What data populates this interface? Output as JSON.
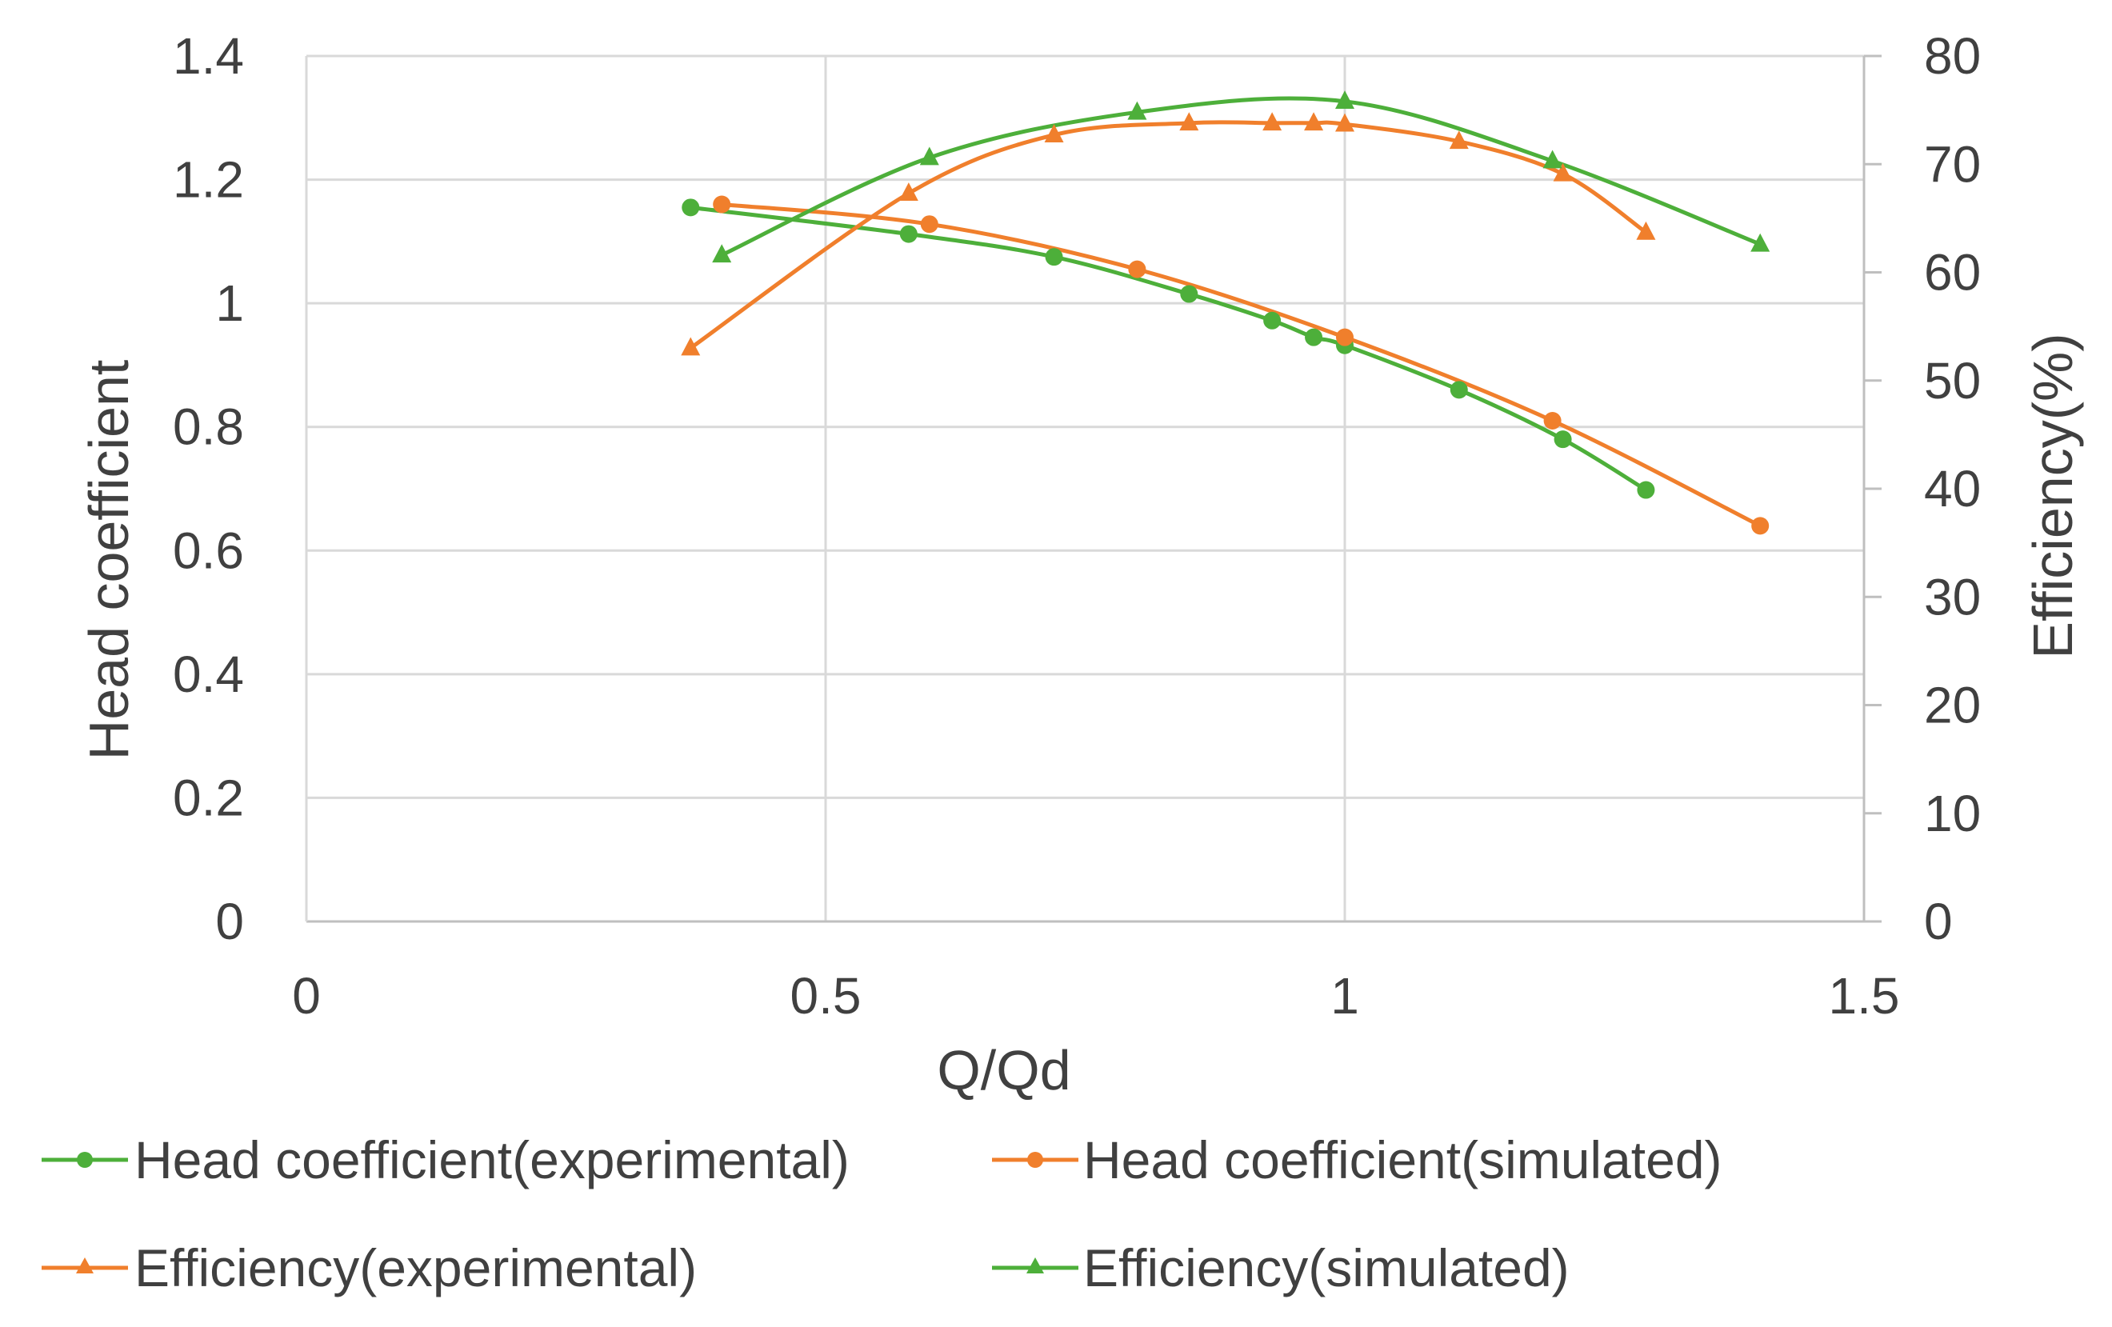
{
  "chart_data": {
    "type": "line",
    "title": "",
    "xlabel": "Q/Qd",
    "ylabel": "Head coefficient",
    "y2label": "Efficiency(%)",
    "xlim": [
      0,
      1.5
    ],
    "ylim": [
      0,
      1.4
    ],
    "y2lim": [
      0,
      80
    ],
    "grid": true,
    "x_ticks": [
      "0",
      "0.5",
      "1",
      "1.5"
    ],
    "y_ticks": [
      "0",
      "0.2",
      "0.4",
      "0.6",
      "0.8",
      "1",
      "1.2",
      "1.4"
    ],
    "y2_ticks": [
      "0",
      "10",
      "20",
      "30",
      "40",
      "50",
      "60",
      "70",
      "80"
    ],
    "legend_position": "bottom",
    "series": [
      {
        "name": "Head coefficient(experimental)",
        "axis": "left",
        "marker": "circle",
        "color": "#4DAF3A",
        "x": [
          0.37,
          0.58,
          0.72,
          0.85,
          0.93,
          0.97,
          1.0,
          1.11,
          1.21,
          1.29
        ],
        "y": [
          1.155,
          1.112,
          1.075,
          1.015,
          0.972,
          0.945,
          0.932,
          0.86,
          0.78,
          0.698
        ]
      },
      {
        "name": "Head coefficient(simulated)",
        "axis": "left",
        "marker": "circle",
        "color": "#F07F2C",
        "x": [
          0.4,
          0.6,
          0.8,
          1.0,
          1.2,
          1.4
        ],
        "y": [
          1.16,
          1.128,
          1.055,
          0.945,
          0.81,
          0.64
        ]
      },
      {
        "name": "Efficiency(experimental)",
        "axis": "right",
        "marker": "triangle",
        "color": "#F07F2C",
        "x": [
          0.37,
          0.58,
          0.72,
          0.85,
          0.93,
          0.97,
          1.0,
          1.11,
          1.21,
          1.29
        ],
        "y": [
          53,
          67.3,
          72.7,
          73.8,
          73.8,
          73.8,
          73.7,
          72.1,
          69.1,
          63.7
        ]
      },
      {
        "name": "Efficiency(simulated)",
        "axis": "right",
        "marker": "triangle",
        "color": "#4DAF3A",
        "x": [
          0.4,
          0.6,
          0.8,
          1.0,
          1.2,
          1.4
        ],
        "y": [
          61.6,
          70.6,
          74.8,
          75.8,
          70.3,
          62.6
        ]
      }
    ]
  }
}
